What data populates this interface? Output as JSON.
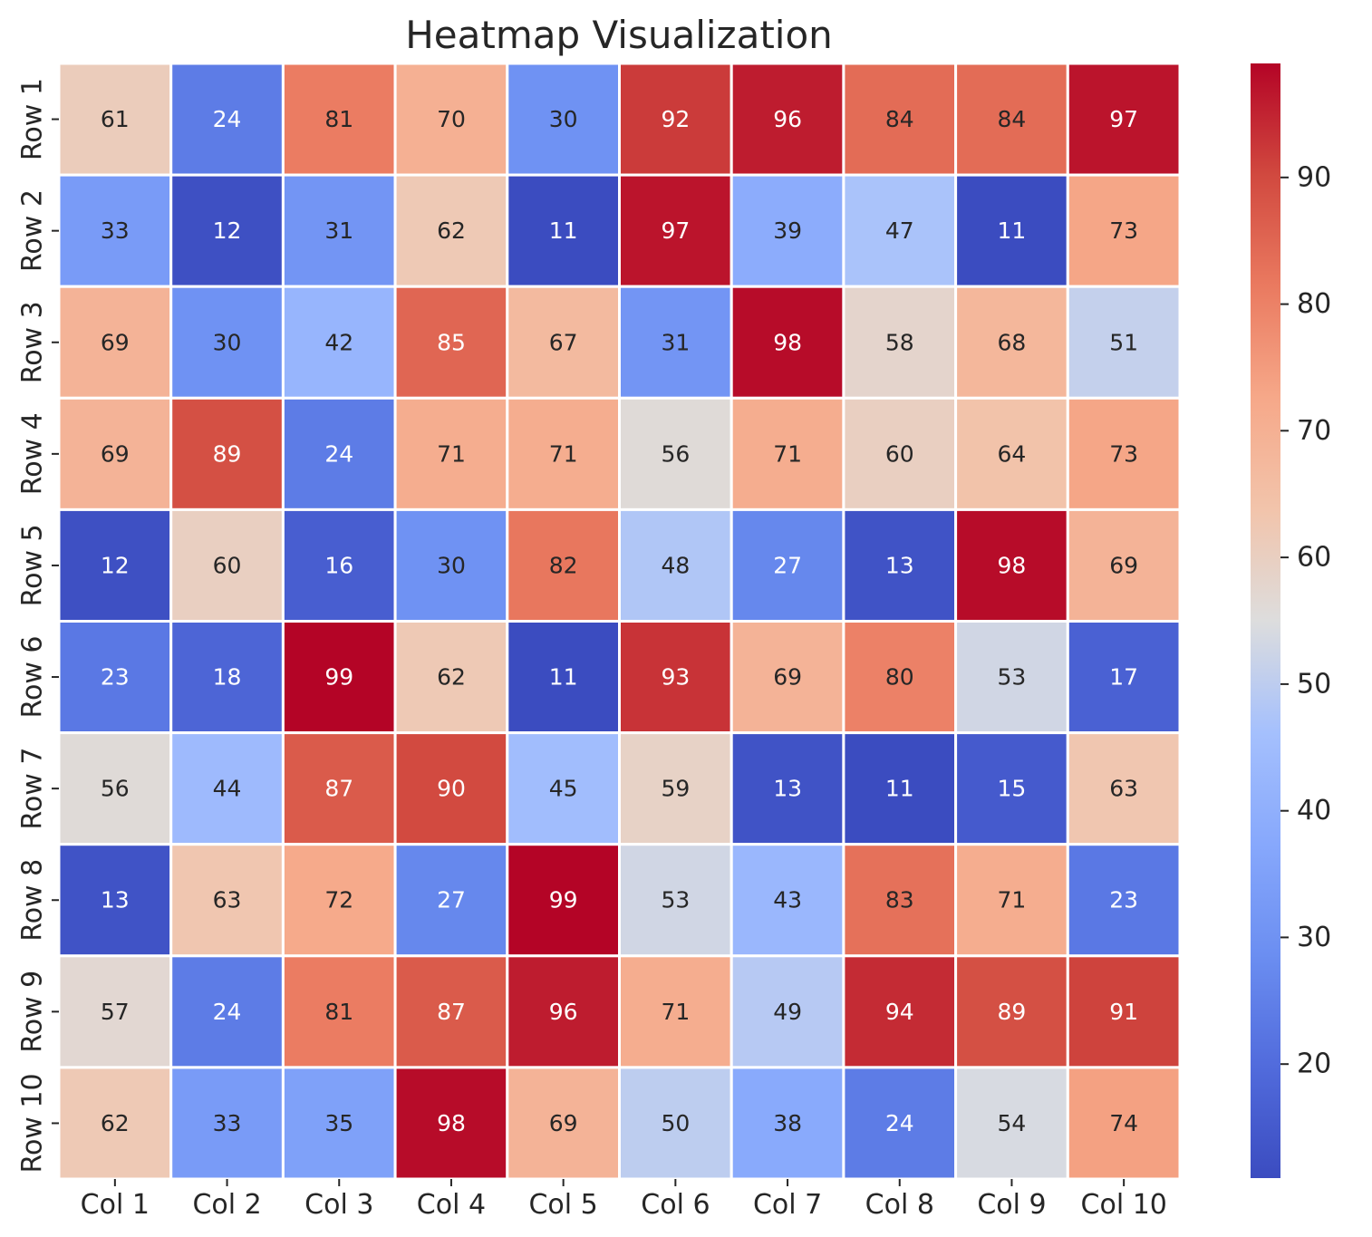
{
  "chart_data": {
    "type": "heatmap",
    "title": "Heatmap Visualization",
    "xlabel": "",
    "ylabel": "",
    "x_categories": [
      "Col 1",
      "Col 2",
      "Col 3",
      "Col 4",
      "Col 5",
      "Col 6",
      "Col 7",
      "Col 8",
      "Col 9",
      "Col 10"
    ],
    "y_categories": [
      "Row 1",
      "Row 2",
      "Row 3",
      "Row 4",
      "Row 5",
      "Row 6",
      "Row 7",
      "Row 8",
      "Row 9",
      "Row 10"
    ],
    "values": [
      [
        61,
        24,
        81,
        70,
        30,
        92,
        96,
        84,
        84,
        97
      ],
      [
        33,
        12,
        31,
        62,
        11,
        97,
        39,
        47,
        11,
        73
      ],
      [
        69,
        30,
        42,
        85,
        67,
        31,
        98,
        58,
        68,
        51
      ],
      [
        69,
        89,
        24,
        71,
        71,
        56,
        71,
        60,
        64,
        73
      ],
      [
        12,
        60,
        16,
        30,
        82,
        48,
        27,
        13,
        98,
        69
      ],
      [
        23,
        18,
        99,
        62,
        11,
        93,
        69,
        80,
        53,
        17
      ],
      [
        56,
        44,
        87,
        90,
        45,
        59,
        13,
        11,
        15,
        63
      ],
      [
        13,
        63,
        72,
        27,
        99,
        53,
        43,
        83,
        71,
        23
      ],
      [
        57,
        24,
        81,
        87,
        96,
        71,
        49,
        94,
        89,
        91
      ],
      [
        62,
        33,
        35,
        98,
        69,
        50,
        38,
        24,
        54,
        74
      ]
    ],
    "annotated": true,
    "colormap": "coolwarm",
    "color_range": [
      11,
      99
    ],
    "colorbar": {
      "placement": "right",
      "ticks": [
        20,
        30,
        40,
        50,
        60,
        70,
        80,
        90
      ]
    },
    "grid": false,
    "cell_border_color": "#ffffff"
  }
}
